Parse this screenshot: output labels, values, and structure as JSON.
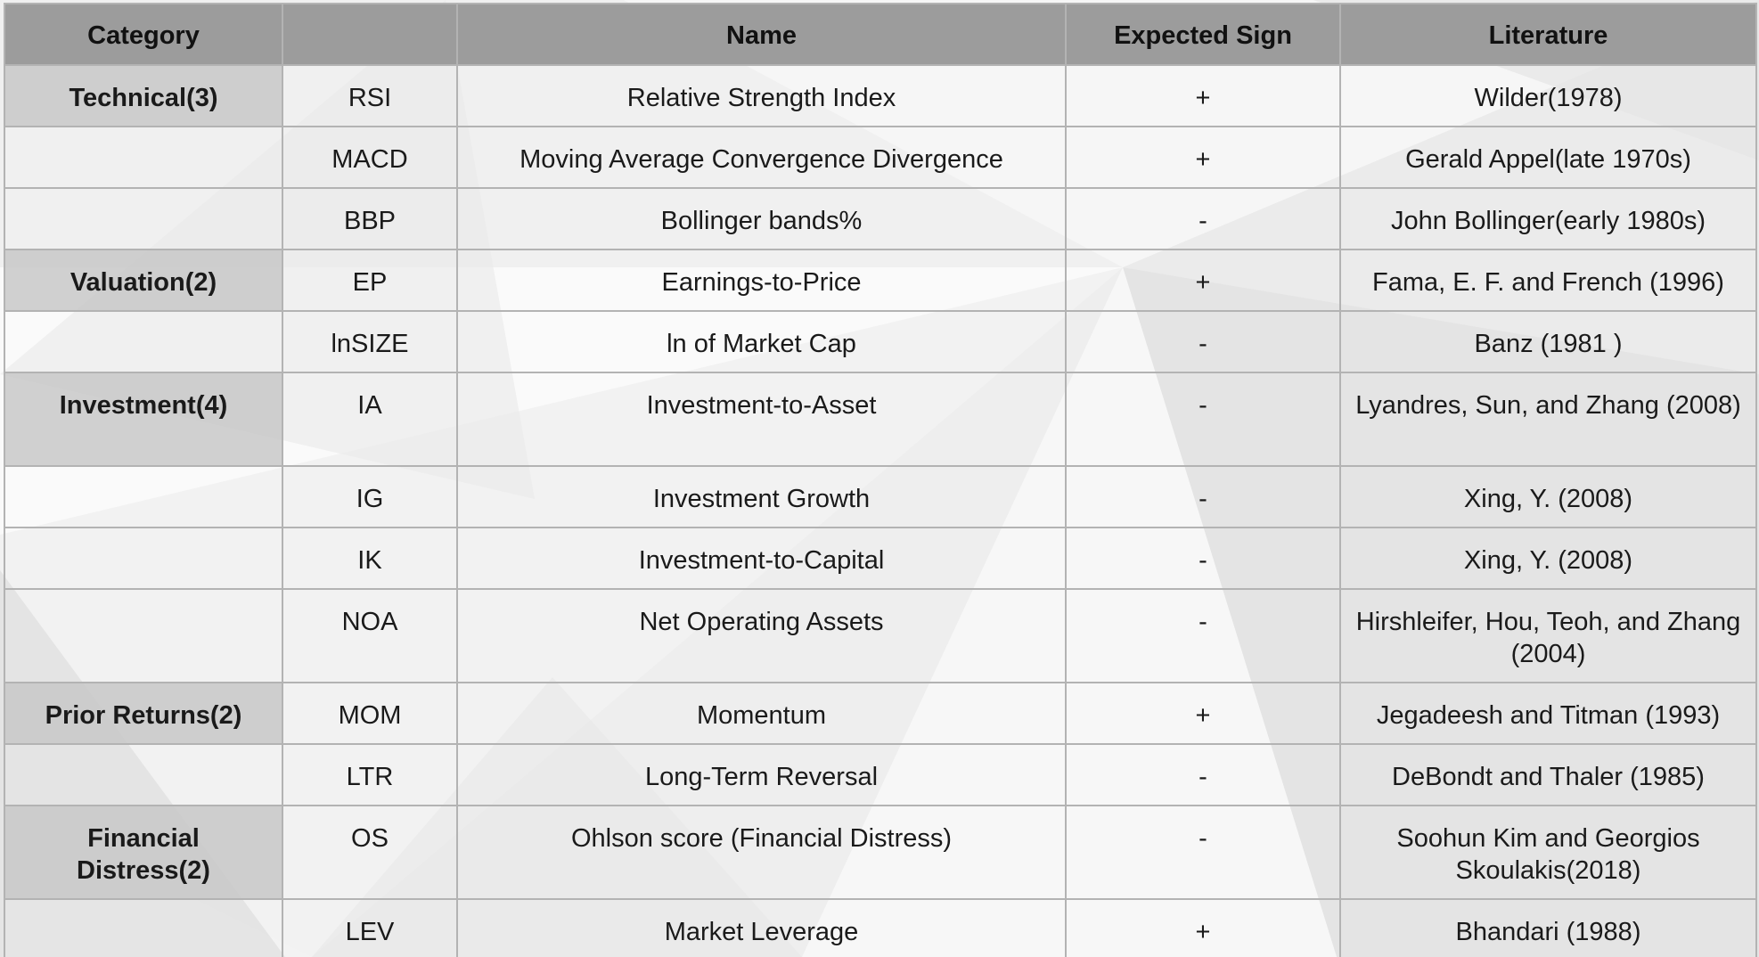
{
  "table": {
    "headers": [
      "Category",
      "",
      "Name",
      "Expected Sign",
      "Literature"
    ],
    "rows": [
      {
        "category": "Technical(3)",
        "code": "RSI",
        "name": "Relative Strength Index",
        "sign": "+",
        "literature": "Wilder(1978)"
      },
      {
        "category": "",
        "code": "MACD",
        "name": "Moving Average Convergence Divergence",
        "sign": "+",
        "literature": "Gerald Appel(late 1970s)"
      },
      {
        "category": "",
        "code": "BBP",
        "name": "Bollinger bands%",
        "sign": "-",
        "literature": "John Bollinger(early 1980s)"
      },
      {
        "category": "Valuation(2)",
        "code": "EP",
        "name": "Earnings-to-Price",
        "sign": "+",
        "literature": "Fama, E. F. and French (1996)"
      },
      {
        "category": "",
        "code": "lnSIZE",
        "name": "ln of Market Cap",
        "sign": "-",
        "literature": "Banz (1981 )"
      },
      {
        "category": "Investment(4)",
        "code": "IA",
        "name": "Investment-to-Asset",
        "sign": "-",
        "literature": "Lyandres, Sun, and Zhang (2008)"
      },
      {
        "category": "",
        "code": "IG",
        "name": "Investment Growth",
        "sign": "-",
        "literature": "Xing, Y. (2008)"
      },
      {
        "category": "",
        "code": "IK",
        "name": "Investment-to-Capital",
        "sign": "-",
        "literature": "Xing, Y. (2008)"
      },
      {
        "category": "",
        "code": "NOA",
        "name": "Net Operating Assets",
        "sign": "-",
        "literature": "Hirshleifer, Hou, Teoh, and Zhang (2004)"
      },
      {
        "category": "Prior Returns(2)",
        "code": "MOM",
        "name": "Momentum",
        "sign": "+",
        "literature": "Jegadeesh and Titman (1993)"
      },
      {
        "category": "",
        "code": "LTR",
        "name": "Long-Term Reversal",
        "sign": "-",
        "literature": "DeBondt and Thaler (1985)"
      },
      {
        "category": "Financial Distress(2)",
        "code": "OS",
        "name": "Ohlson score (Financial Distress)",
        "sign": "-",
        "literature": "Soohun Kim and Georgios Skoulakis(2018)"
      },
      {
        "category": "",
        "code": "LEV",
        "name": "Market Leverage",
        "sign": "+",
        "literature": "Bhandari (1988)"
      }
    ]
  }
}
